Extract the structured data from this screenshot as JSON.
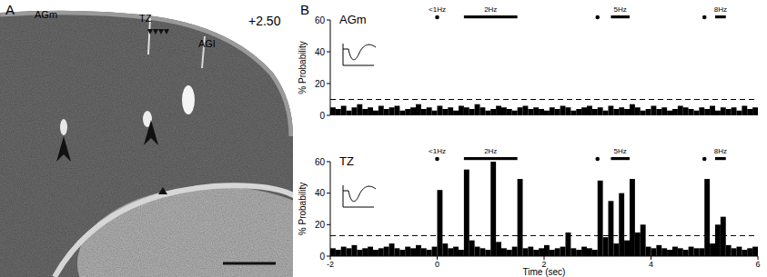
{
  "panel_a": {
    "label": "A",
    "section": "+2.50",
    "labels": [
      "AGm",
      "TZ",
      "AGl"
    ]
  },
  "panel_b": {
    "label": "B"
  },
  "chart_data": [
    {
      "type": "histogram",
      "title": "AGm",
      "ylabel": "% Probability",
      "color": "#000000",
      "tick_labels": "y",
      "xlim": [
        -2,
        6
      ],
      "ylim": [
        0,
        60
      ],
      "yticks": [
        0,
        20,
        40,
        60
      ],
      "threshold": 10,
      "stimuli": [
        {
          "label": "<1Hz",
          "start": 0,
          "end": 0
        },
        {
          "label": "2Hz",
          "start": 0.5,
          "end": 1.5
        },
        {
          "label": null,
          "start": 3,
          "end": 3
        },
        {
          "label": "5Hz",
          "start": 3.25,
          "end": 3.6
        },
        {
          "label": null,
          "start": 5,
          "end": 5
        },
        {
          "label": "8Hz",
          "start": 5.2,
          "end": 5.4
        }
      ],
      "bins": [
        -2,
        -1.9,
        -1.8,
        -1.7,
        -1.6,
        -1.5,
        -1.4,
        -1.3,
        -1.2,
        -1.1,
        -1,
        -0.9,
        -0.8,
        -0.7,
        -0.6,
        -0.5,
        -0.4,
        -0.3,
        -0.2,
        -0.1,
        0,
        0.1,
        0.2,
        0.3,
        0.4,
        0.5,
        0.6,
        0.7,
        0.8,
        0.9,
        1,
        1.1,
        1.2,
        1.3,
        1.4,
        1.5,
        1.6,
        1.7,
        1.8,
        1.9,
        2,
        2.1,
        2.2,
        2.3,
        2.4,
        2.5,
        2.6,
        2.7,
        2.8,
        2.9,
        3,
        3.1,
        3.2,
        3.3,
        3.4,
        3.5,
        3.6,
        3.7,
        3.8,
        3.9,
        4,
        4.1,
        4.2,
        4.3,
        4.4,
        4.5,
        4.6,
        4.7,
        4.8,
        4.9,
        5,
        5.1,
        5.2,
        5.3,
        5.4,
        5.5,
        5.6,
        5.7,
        5.8,
        5.9,
        6
      ],
      "values": [
        5,
        4,
        6,
        3,
        5,
        7,
        4,
        5,
        3,
        6,
        4,
        5,
        6,
        3,
        4,
        5,
        7,
        4,
        5,
        3,
        6,
        4,
        5,
        3,
        6,
        5,
        4,
        7,
        5,
        3,
        4,
        6,
        5,
        4,
        3,
        5,
        6,
        4,
        5,
        4,
        3,
        5,
        4,
        6,
        5,
        3,
        4,
        5,
        6,
        4,
        5,
        3,
        6,
        4,
        5,
        4,
        7,
        5,
        3,
        4,
        6,
        4,
        5,
        3,
        4,
        6,
        5,
        4,
        3,
        5,
        4,
        6,
        3,
        5,
        4,
        5,
        3,
        6,
        4,
        5
      ]
    },
    {
      "type": "histogram",
      "title": "TZ",
      "ylabel": "% Probability",
      "xlabel": "Time (sec)",
      "color": "#000000",
      "xlim": [
        -2,
        6
      ],
      "xticks": [
        -2,
        0,
        2,
        4,
        6
      ],
      "ylim": [
        0,
        60
      ],
      "yticks": [
        0,
        20,
        40,
        60
      ],
      "threshold": 13,
      "stimuli": [
        {
          "label": "<1Hz",
          "start": 0,
          "end": 0
        },
        {
          "label": "2Hz",
          "start": 0.5,
          "end": 1.5
        },
        {
          "label": null,
          "start": 3,
          "end": 3
        },
        {
          "label": "5Hz",
          "start": 3.25,
          "end": 3.6
        },
        {
          "label": null,
          "start": 5,
          "end": 5
        },
        {
          "label": "8Hz",
          "start": 5.2,
          "end": 5.4
        }
      ],
      "bins": [
        -2,
        -1.9,
        -1.8,
        -1.7,
        -1.6,
        -1.5,
        -1.4,
        -1.3,
        -1.2,
        -1.1,
        -1,
        -0.9,
        -0.8,
        -0.7,
        -0.6,
        -0.5,
        -0.4,
        -0.3,
        -0.2,
        -0.1,
        0,
        0.1,
        0.2,
        0.3,
        0.4,
        0.5,
        0.6,
        0.7,
        0.8,
        0.9,
        1,
        1.1,
        1.2,
        1.3,
        1.4,
        1.5,
        1.6,
        1.7,
        1.8,
        1.9,
        2,
        2.1,
        2.2,
        2.3,
        2.4,
        2.5,
        2.6,
        2.7,
        2.8,
        2.9,
        3,
        3.1,
        3.2,
        3.3,
        3.4,
        3.5,
        3.6,
        3.7,
        3.8,
        3.9,
        4,
        4.1,
        4.2,
        4.3,
        4.4,
        4.5,
        4.6,
        4.7,
        4.8,
        4.9,
        5,
        5.1,
        5.2,
        5.3,
        5.4,
        5.5,
        5.6,
        5.7,
        5.8,
        5.9,
        6
      ],
      "values": [
        5,
        4,
        6,
        5,
        7,
        4,
        5,
        6,
        4,
        5,
        6,
        8,
        5,
        4,
        6,
        5,
        7,
        5,
        4,
        6,
        42,
        8,
        5,
        6,
        4,
        55,
        10,
        6,
        5,
        4,
        60,
        9,
        5,
        4,
        6,
        49,
        5,
        6,
        4,
        5,
        7,
        4,
        5,
        6,
        15,
        5,
        4,
        6,
        5,
        4,
        48,
        12,
        35,
        8,
        40,
        10,
        49,
        15,
        20,
        6,
        5,
        7,
        5,
        4,
        6,
        5,
        4,
        6,
        5,
        5,
        49,
        8,
        20,
        25,
        7,
        5,
        6,
        4,
        5,
        6
      ]
    }
  ]
}
